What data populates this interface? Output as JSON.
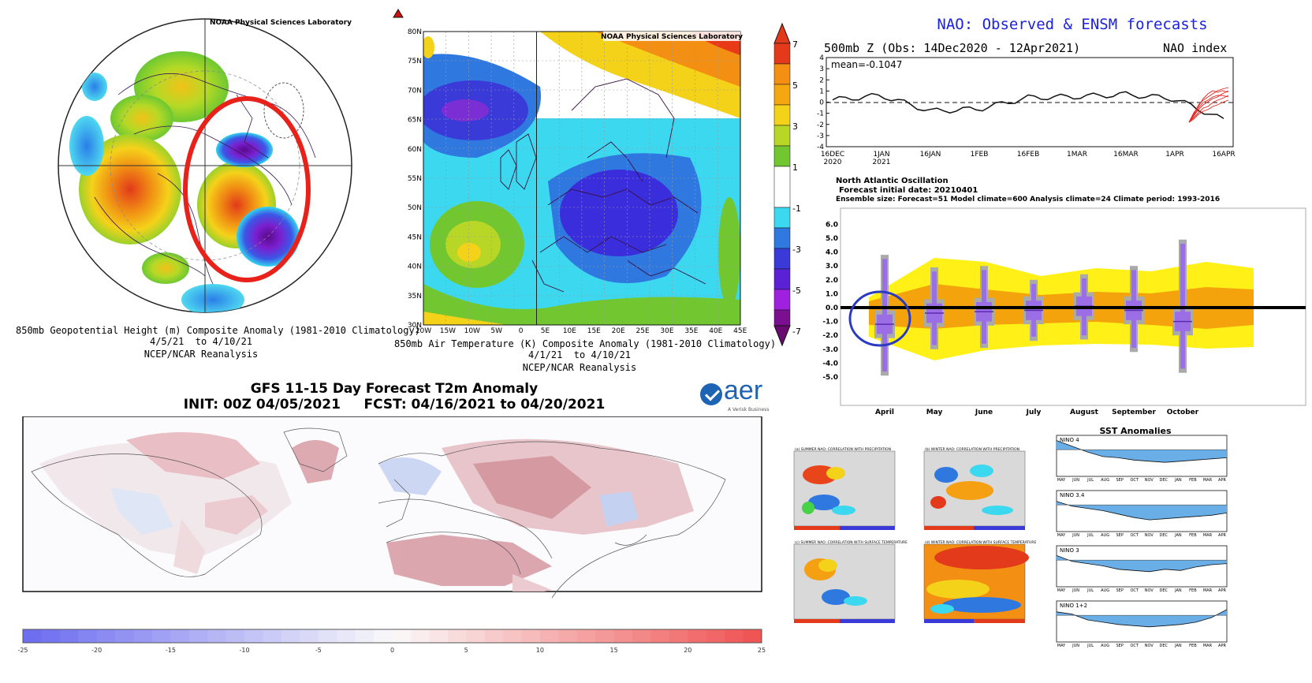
{
  "polar_map": {
    "lab_label": "NOAA Physical Sciences Laboratory",
    "caption_line1": "850mb Geopotential Height (m) Composite Anomaly (1981-2010 Climatology)",
    "caption_line2": "4/5/21  to 4/10/21",
    "caption_line3": "NCEP/NCAR Reanalysis"
  },
  "euro_map": {
    "lab_label": "NOAA Physical Sciences Laboratory",
    "lat_ticks": [
      "80N",
      "75N",
      "70N",
      "65N",
      "60N",
      "55N",
      "50N",
      "45N",
      "40N",
      "35N",
      "30N"
    ],
    "lon_ticks": [
      "20W",
      "15W",
      "10W",
      "5W",
      "0",
      "5E",
      "10E",
      "15E",
      "20E",
      "25E",
      "30E",
      "35E",
      "40E",
      "45E"
    ],
    "caption_line1": "850mb Air Temperature (K) Composite Anomaly (1981-2010 Climatology)",
    "caption_line2": "4/1/21  to 4/10/21",
    "caption_line3": "NCEP/NCAR Reanalysis",
    "colorbar_ticks": [
      "7",
      "5",
      "3",
      "1",
      "-1",
      "-3",
      "-5",
      "-7"
    ]
  },
  "nao_obs": {
    "title": "NAO: Observed & ENSM forecasts",
    "subtitle": "500mb Z (Obs: 14Dec2020 - 12Apr2021)",
    "right_label": "NAO index",
    "mean_label": "mean=-0.1047",
    "y_ticks": [
      "4",
      "3",
      "2",
      "1",
      "0",
      "-1",
      "-2",
      "-3",
      "-4"
    ],
    "x_ticks": [
      "16DEC\n2020",
      "1JAN\n2021",
      "16JAN",
      "1FEB",
      "16FEB",
      "1MAR",
      "16MAR",
      "1APR",
      "16APR"
    ]
  },
  "nao_fcst": {
    "title": "North Atlantic Oscillation",
    "line2": "Forecast initial date: 20210401",
    "line3": "Ensemble size: Forecast=51 Model climate=600 Analysis climate=24   Climate period: 1993-2016",
    "y_ticks": [
      "6.0",
      "5.0",
      "4.0",
      "3.0",
      "2.0",
      "1.0",
      "0.0",
      "-1.0",
      "-2.0",
      "-3.0",
      "-4.0",
      "-5.0"
    ],
    "months": [
      "April",
      "May",
      "June",
      "July",
      "August",
      "September",
      "October"
    ]
  },
  "gfs": {
    "title_line1": "GFS 11-15 Day Forecast T2m Anomaly",
    "title_line2": "INIT: 00Z 04/05/2021     FCST: 04/16/2021 to 04/20/2021",
    "logo_text": "aer",
    "logo_sub": "A Verisk Business",
    "colorbar_ticks": [
      "-25",
      "-20",
      "-15",
      "-10",
      "-5",
      "0",
      "5",
      "10",
      "15",
      "20",
      "25"
    ]
  },
  "correlation_maps": {
    "panels": [
      "(a) SUMMER NAO: CORRELATION WITH PRECIPITATION",
      "(b) WINTER NAO: CORRELATION WITH PRECIPITATION",
      "(c) SUMMER NAO: CORRELATION WITH SURFACE TEMPERATURE",
      "(d) WINTER NAO: CORRELATION WITH SURFACE TEMPERATURE"
    ]
  },
  "sst": {
    "title": "SST Anomalies",
    "panels": [
      "NINO 4",
      "NINO 3.4",
      "NINO 3",
      "NINO 1+2"
    ],
    "months": [
      "MAY",
      "JUN",
      "JUL",
      "AUG",
      "SEP",
      "OCT",
      "NOV",
      "DEC",
      "JAN",
      "FEB",
      "MAR",
      "APR"
    ]
  },
  "chart_data": [
    {
      "type": "line",
      "title": "NAO: Observed & ENSM forecasts",
      "ylabel": "NAO index",
      "ylim": [
        -4,
        4
      ],
      "x": [
        "16DEC 2020",
        "1JAN 2021",
        "16JAN",
        "1FEB",
        "16FEB",
        "1MAR",
        "16MAR",
        "1APR",
        "16APR"
      ],
      "series": [
        {
          "values": [
            0.2,
            0.6,
            -0.8,
            -0.6,
            0.4,
            0.5,
            0.7,
            0.3,
            -1.6
          ]
        }
      ],
      "annotations": [
        "mean=-0.1047"
      ]
    },
    {
      "type": "bar",
      "title": "North Atlantic Oscillation",
      "categories": [
        "April",
        "May",
        "June",
        "July",
        "August",
        "September",
        "October"
      ],
      "ylim": [
        -6,
        6
      ],
      "series": [
        {
          "name": "",
          "values": [
            -1.2,
            -0.4,
            -0.3,
            -0.2,
            0.1,
            -0.2,
            -1.0
          ]
        }
      ],
      "max": [
        3.8,
        2.9,
        3.0,
        2.0,
        2.4,
        3.0,
        4.9
      ],
      "min": [
        -4.9,
        -3.0,
        -2.9,
        -2.4,
        -2.3,
        -3.2,
        -4.7
      ]
    }
  ]
}
